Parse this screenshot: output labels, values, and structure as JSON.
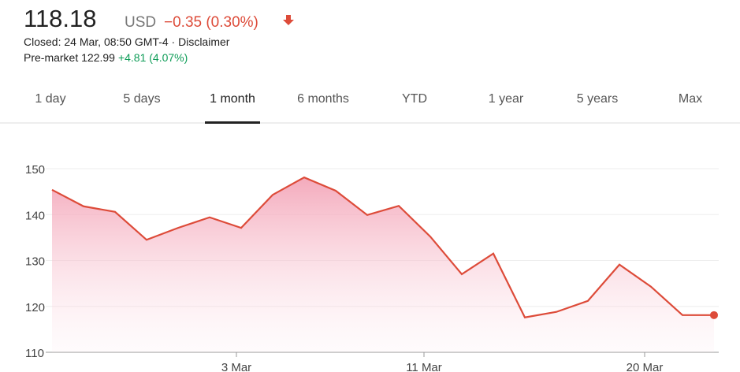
{
  "header": {
    "price": "118.18",
    "currency": "USD",
    "change": "−0.35 (0.30%)",
    "status": "Closed: 24 Mar, 08:50 GMT-4 · ",
    "disclaimer": "Disclaimer",
    "premarket": "Pre-market 122.99",
    "premarket_change": "+4.81 (4.07%)"
  },
  "tabs": [
    "1 day",
    "5 days",
    "1 month",
    "6 months",
    "YTD",
    "1 year",
    "5 years",
    "Max"
  ],
  "active_tab": 2,
  "chart_data": {
    "type": "line",
    "x": [
      0,
      1,
      2,
      3,
      4,
      5,
      6,
      7,
      8,
      9,
      10,
      11,
      12,
      13,
      14,
      15,
      16,
      17,
      18,
      19,
      20,
      21
    ],
    "series": [
      {
        "color": "#dd4b39",
        "values": [
          145.4,
          141.8,
          140.6,
          134.5,
          137.1,
          139.4,
          137.1,
          144.3,
          148.1,
          145.2,
          139.9,
          141.9,
          135.2,
          127,
          131.5,
          117.6,
          118.8,
          121.2,
          129.1,
          124.3,
          118.1,
          118.1
        ]
      }
    ],
    "xlim": [
      0,
      21
    ],
    "xticks": [
      {
        "value": 5.85,
        "label": "3 Mar"
      },
      {
        "value": 11.8,
        "label": "11 Mar"
      },
      {
        "value": 18.8,
        "label": "20 Mar"
      }
    ],
    "ylim": [
      110,
      152
    ],
    "yticks": [
      110,
      120,
      130,
      140,
      150
    ],
    "grid": true
  }
}
